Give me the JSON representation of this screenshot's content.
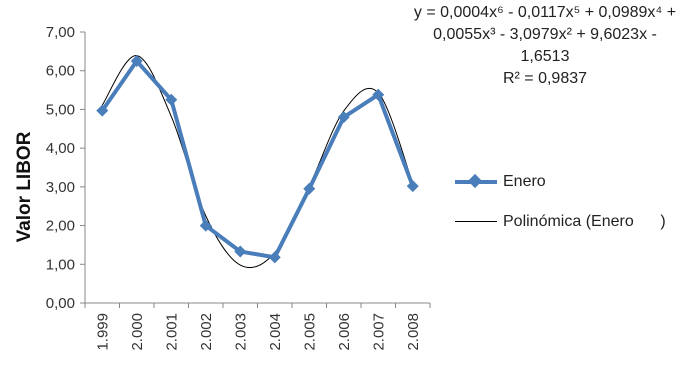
{
  "chart_data": {
    "type": "line",
    "ylabel": "Valor LIBOR",
    "categories": [
      "1.999",
      "2.000",
      "2.001",
      "2.002",
      "2.003",
      "2.004",
      "2.005",
      "2.006",
      "2.007",
      "2.008"
    ],
    "y_ticks": [
      "0,00",
      "1,00",
      "2,00",
      "3,00",
      "4,00",
      "5,00",
      "6,00",
      "7,00"
    ],
    "ylim": [
      0,
      7
    ],
    "series": [
      {
        "name": "Enero",
        "values": [
          4.97,
          6.25,
          5.25,
          2.0,
          1.33,
          1.18,
          2.95,
          4.8,
          5.38,
          3.02
        ],
        "color": "#4a7ebb",
        "marker": "diamond"
      }
    ],
    "trendline": {
      "name": "Polinómica (Enero      )",
      "color": "#000000",
      "fitted_values": [
        5.11,
        6.39,
        4.82,
        2.25,
        0.98,
        1.3,
        3.02,
        4.96,
        5.43,
        3.09
      ]
    },
    "equation_lines": [
      "y = 0,0004x⁶ - 0,0117x⁵ + 0,0989x⁴ +",
      "0,0055x³ - 3,0979x² + 9,6023x -",
      "1,6513",
      "R² = 0,9837"
    ],
    "grid": false,
    "legend_position": "right"
  }
}
